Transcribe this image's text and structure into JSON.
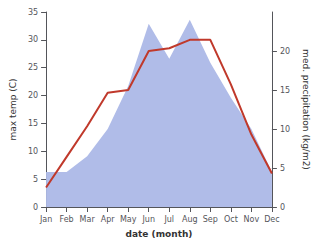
{
  "chart_data": {
    "type": "line",
    "categories": [
      "Jan",
      "Feb",
      "Mar",
      "Apr",
      "May",
      "Jun",
      "Jul",
      "Aug",
      "Sep",
      "Oct",
      "Nov",
      "Dec"
    ],
    "xlabel": "date (month)",
    "ylabel": "max temp (C)",
    "y2label": "med. precipitation (kg/m2)",
    "ylim": [
      0,
      35
    ],
    "yticks": [
      0,
      5,
      10,
      15,
      20,
      25,
      30,
      35
    ],
    "y2lim": [
      0,
      25
    ],
    "y2ticks": [
      0,
      5,
      10,
      15,
      20
    ],
    "grid": false,
    "series": [
      {
        "type": "area",
        "axis": "y2",
        "color": "#b0bce8",
        "values": [
          4.5,
          4.5,
          6.5,
          10.0,
          15.5,
          23.5,
          19.0,
          24.0,
          18.5,
          14.0,
          10.0,
          4.5
        ]
      },
      {
        "type": "line",
        "color": "#c0392b",
        "values": [
          3.5,
          9.0,
          14.5,
          20.5,
          21.0,
          28.0,
          28.5,
          30.0,
          30.0,
          22.0,
          13.0,
          6.0
        ]
      }
    ]
  }
}
